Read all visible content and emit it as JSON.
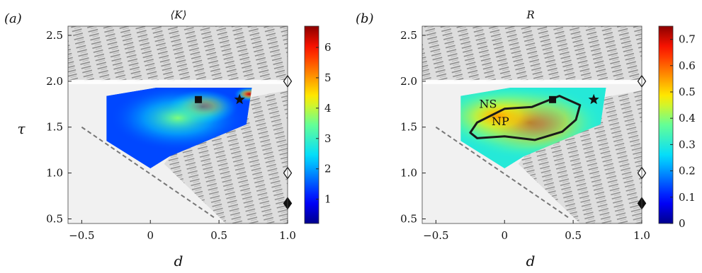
{
  "figure": {
    "panels": [
      {
        "label": "(a)",
        "title": "⟨K⟩",
        "xlabel": "d",
        "ylabel": "τ"
      },
      {
        "label": "(b)",
        "title": "R",
        "xlabel": "d",
        "ylabel": ""
      }
    ]
  },
  "chart_data": [
    {
      "type": "heatmap",
      "title": "⟨K⟩",
      "xlabel": "d",
      "ylabel": "τ",
      "xlim": [
        -0.6,
        1.0
      ],
      "ylim": [
        0.45,
        2.6
      ],
      "xticks": [
        "−0.5",
        "0",
        "0.5",
        "1.0"
      ],
      "yticks": [
        "0.5",
        "1.0",
        "1.5",
        "2.0",
        "2.5"
      ],
      "colorbar": {
        "min": 0.2,
        "max": 6.7,
        "ticks": [
          "1",
          "2",
          "3",
          "4",
          "5",
          "6"
        ],
        "colormap": "jet"
      },
      "data_region_polygon": [
        [
          -0.32,
          1.84
        ],
        [
          0.04,
          1.93
        ],
        [
          0.74,
          1.93
        ],
        [
          0.7,
          1.53
        ],
        [
          0.14,
          1.18
        ],
        [
          0.0,
          1.05
        ],
        [
          -0.32,
          1.35
        ]
      ],
      "hotspots": [
        {
          "d": 0.38,
          "tau": 1.72,
          "value": 6.3,
          "spread": 0.12
        },
        {
          "d": 0.2,
          "tau": 1.6,
          "value": 3.6,
          "spread": 0.22
        },
        {
          "d": 0.72,
          "tau": 1.86,
          "value": 6.5,
          "spread": 0.05
        }
      ],
      "background_level": 1.4,
      "markers": [
        {
          "symbol": "square",
          "d": 0.35,
          "tau": 1.8
        },
        {
          "symbol": "star",
          "d": 0.65,
          "tau": 1.8
        },
        {
          "symbol": "diamond-open",
          "d": 1.0,
          "tau": 2.0
        },
        {
          "symbol": "diamond-open",
          "d": 1.0,
          "tau": 1.0
        },
        {
          "symbol": "diamond-filled",
          "d": 1.0,
          "tau": 0.67
        }
      ],
      "dashed_boundary": [
        [
          -0.5,
          1.5
        ],
        [
          0.48,
          0.5
        ]
      ]
    },
    {
      "type": "heatmap",
      "title": "R",
      "xlabel": "d",
      "ylabel": "",
      "xlim": [
        -0.6,
        1.0
      ],
      "ylim": [
        0.45,
        2.6
      ],
      "xticks": [
        "−0.5",
        "0",
        "0.5",
        "1.0"
      ],
      "yticks": [
        "0.5",
        "1.0",
        "1.5",
        "2.0",
        "2.5"
      ],
      "colorbar": {
        "min": 0.0,
        "max": 0.75,
        "ticks": [
          "0",
          "0.1",
          "0.2",
          "0.3",
          "0.4",
          "0.5",
          "0.6",
          "0.7"
        ],
        "colormap": "jet"
      },
      "data_region_polygon": [
        [
          -0.32,
          1.84
        ],
        [
          0.04,
          1.93
        ],
        [
          0.74,
          1.93
        ],
        [
          0.7,
          1.53
        ],
        [
          0.14,
          1.18
        ],
        [
          0.0,
          1.05
        ],
        [
          -0.32,
          1.35
        ]
      ],
      "hotspots": [
        {
          "d": 0.18,
          "tau": 1.55,
          "value": 0.7,
          "spread": 0.25
        },
        {
          "d": -0.05,
          "tau": 1.62,
          "value": 0.55,
          "spread": 0.22
        }
      ],
      "background_level": 0.3,
      "contour": {
        "points": [
          [
            -0.2,
            1.38
          ],
          [
            0.0,
            1.4
          ],
          [
            0.22,
            1.36
          ],
          [
            0.42,
            1.45
          ],
          [
            0.52,
            1.58
          ],
          [
            0.55,
            1.74
          ],
          [
            0.4,
            1.84
          ],
          [
            0.2,
            1.72
          ],
          [
            0.0,
            1.7
          ],
          [
            -0.2,
            1.55
          ],
          [
            -0.25,
            1.44
          ]
        ],
        "labels": [
          {
            "text": "NS",
            "d": -0.12,
            "tau": 1.71
          },
          {
            "text": "NP",
            "d": -0.03,
            "tau": 1.52
          }
        ]
      },
      "markers": [
        {
          "symbol": "square",
          "d": 0.35,
          "tau": 1.8
        },
        {
          "symbol": "star",
          "d": 0.65,
          "tau": 1.8
        },
        {
          "symbol": "diamond-open",
          "d": 1.0,
          "tau": 2.0
        },
        {
          "symbol": "diamond-open",
          "d": 1.0,
          "tau": 1.0
        },
        {
          "symbol": "diamond-filled",
          "d": 1.0,
          "tau": 0.67
        }
      ],
      "dashed_boundary": [
        [
          -0.5,
          1.5
        ],
        [
          0.48,
          0.5
        ]
      ]
    }
  ]
}
